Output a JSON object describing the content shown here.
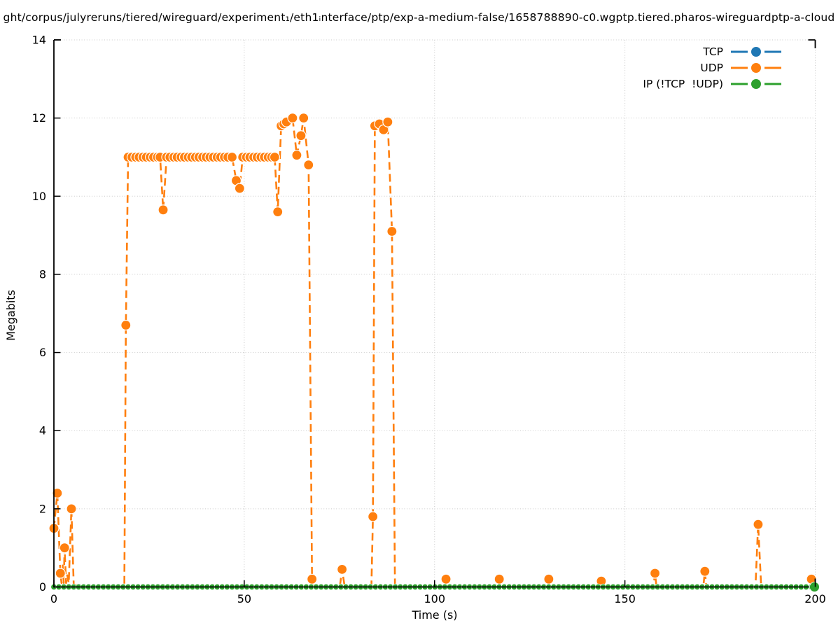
{
  "title": "ght/corpus/julyreruns/tiered/wireguard/experiment₁/eth1ᵢnterface/ptp/exp-a-medium-false/1658788890-c0.wgptp.tiered.pharos-wireguardptp-a-cloud",
  "y_axis": {
    "label": "Megabits",
    "ticks": [
      0,
      2,
      4,
      6,
      8,
      10,
      12,
      14
    ]
  },
  "x_axis": {
    "label": "Time (s)",
    "ticks": [
      0,
      50,
      100,
      150,
      200
    ]
  },
  "legend": [
    {
      "label": "TCP",
      "color": "#1f77b4"
    },
    {
      "label": "UDP",
      "color": "#ff7f0e"
    },
    {
      "label": "IP (!TCP  !UDP)",
      "color": "#2ca02c"
    }
  ],
  "colors": {
    "tcp": "#1f77b4",
    "udp": "#ff7f0e",
    "ip": "#2ca02c",
    "grid": "#c9c9c9",
    "axis": "#000000",
    "background": "#ffffff"
  },
  "chart_data": {
    "type": "line",
    "title": "ght/corpus/julyreruns/tiered/wireguard/experiment₁/eth1ᵢnterface/ptp/exp-a-medium-false/1658788890-c0.wgptp.tiered.pharos-wireguardptp-a-cloud",
    "xlabel": "Time (s)",
    "ylabel": "Megabits",
    "xlim": [
      0,
      200
    ],
    "ylim": [
      0,
      14
    ],
    "x_ticks": [
      0,
      50,
      100,
      150,
      200
    ],
    "y_ticks": [
      0,
      2,
      4,
      6,
      8,
      10,
      12,
      14
    ],
    "grid": true,
    "legend_position": "top-right-inside",
    "point_format": "[time_s, megabits, marker_visible]",
    "series": [
      {
        "name": "TCP",
        "color": "#1f77b4",
        "style": "dashed-line-with-circle-markers",
        "note": "constant 0 for whole run, hidden beneath IP markers on the x-axis",
        "points": [
          [
            0,
            0,
            0
          ],
          [
            200,
            0,
            0
          ]
        ]
      },
      {
        "name": "UDP",
        "color": "#ff7f0e",
        "style": "dashed-line-with-circle-markers",
        "points": [
          [
            0,
            1.5,
            1
          ],
          [
            0.9,
            2.4,
            1
          ],
          [
            1.7,
            0.35,
            1
          ],
          [
            2.0,
            0.1,
            0
          ],
          [
            2.3,
            0.55,
            0
          ],
          [
            2.6,
            0.1,
            0
          ],
          [
            2.8,
            1.0,
            1
          ],
          [
            3.2,
            0.1,
            0
          ],
          [
            3.5,
            0.3,
            0
          ],
          [
            3.9,
            0.1,
            0
          ],
          [
            4.6,
            2.0,
            1
          ],
          [
            5.2,
            0.05,
            0
          ],
          [
            6.3,
            0.05,
            0
          ],
          [
            6.6,
            0,
            0
          ],
          [
            18.5,
            0,
            0
          ],
          [
            18.9,
            6.7,
            1
          ],
          [
            19.5,
            11,
            1
          ],
          [
            20.5,
            11,
            1
          ],
          [
            21.5,
            11,
            1
          ],
          [
            22.4,
            11,
            1
          ],
          [
            23.4,
            11,
            1
          ],
          [
            24.3,
            11,
            1
          ],
          [
            25.3,
            11,
            1
          ],
          [
            26.2,
            11,
            1
          ],
          [
            27.2,
            11,
            1
          ],
          [
            27.9,
            11,
            1
          ],
          [
            28.7,
            9.65,
            1
          ],
          [
            29.6,
            11,
            1
          ],
          [
            30.5,
            11,
            1
          ],
          [
            31.5,
            11,
            1
          ],
          [
            32.4,
            11,
            1
          ],
          [
            33.4,
            11,
            1
          ],
          [
            34.3,
            11,
            1
          ],
          [
            35.3,
            11,
            1
          ],
          [
            36.2,
            11,
            1
          ],
          [
            37.2,
            11,
            1
          ],
          [
            38.1,
            11,
            1
          ],
          [
            39.1,
            11,
            1
          ],
          [
            40,
            11,
            1
          ],
          [
            41,
            11,
            1
          ],
          [
            41.9,
            11,
            1
          ],
          [
            42.9,
            11,
            1
          ],
          [
            43.8,
            11,
            1
          ],
          [
            44.8,
            11,
            1
          ],
          [
            45.7,
            11,
            1
          ],
          [
            46.8,
            11,
            1
          ],
          [
            47.9,
            10.4,
            1
          ],
          [
            48.8,
            10.2,
            1
          ],
          [
            49.6,
            11,
            1
          ],
          [
            50.6,
            11,
            1
          ],
          [
            51.5,
            11,
            1
          ],
          [
            52.5,
            11,
            1
          ],
          [
            53.4,
            11,
            1
          ],
          [
            54.4,
            11,
            1
          ],
          [
            55.3,
            11,
            1
          ],
          [
            56.3,
            11,
            1
          ],
          [
            57.2,
            11,
            1
          ],
          [
            58,
            11,
            1
          ],
          [
            58.8,
            9.6,
            1
          ],
          [
            59.7,
            11.8,
            1
          ],
          [
            60.4,
            11.85,
            1
          ],
          [
            61.1,
            11.9,
            1
          ],
          [
            62.7,
            12,
            1
          ],
          [
            63.8,
            11.05,
            1
          ],
          [
            64.9,
            11.55,
            1
          ],
          [
            65.6,
            12,
            1
          ],
          [
            66.9,
            10.8,
            1
          ],
          [
            67.8,
            0.2,
            1
          ],
          [
            68.3,
            0,
            0
          ],
          [
            75.1,
            0,
            0
          ],
          [
            75.7,
            0.45,
            1
          ],
          [
            76.4,
            0,
            0
          ],
          [
            83.4,
            0,
            0
          ],
          [
            83.8,
            1.8,
            1
          ],
          [
            84.3,
            11.8,
            1
          ],
          [
            85.5,
            11.85,
            1
          ],
          [
            86.6,
            11.7,
            1
          ],
          [
            87.7,
            11.9,
            1
          ],
          [
            88.8,
            9.1,
            1
          ],
          [
            89.6,
            0,
            0
          ],
          [
            102.6,
            0,
            0
          ],
          [
            103,
            0.2,
            1
          ],
          [
            103.4,
            0,
            0
          ],
          [
            116.6,
            0,
            0
          ],
          [
            117,
            0.2,
            1
          ],
          [
            117.4,
            0,
            0
          ],
          [
            129.6,
            0,
            0
          ],
          [
            130,
            0.2,
            1
          ],
          [
            130.4,
            0,
            0
          ],
          [
            143.4,
            0,
            0
          ],
          [
            143.8,
            0.15,
            1
          ],
          [
            144.2,
            0,
            0
          ],
          [
            157.5,
            0,
            0
          ],
          [
            157.9,
            0.35,
            1
          ],
          [
            158.3,
            0,
            0
          ],
          [
            170.6,
            0,
            0
          ],
          [
            171,
            0.4,
            1
          ],
          [
            171.4,
            0,
            0
          ],
          [
            184.3,
            0,
            0
          ],
          [
            185,
            1.6,
            1
          ],
          [
            185.8,
            0,
            0
          ],
          [
            198.7,
            0,
            0
          ],
          [
            199,
            0.2,
            1
          ],
          [
            199.3,
            0,
            0
          ]
        ]
      },
      {
        "name": "IP (!TCP  !UDP)",
        "color": "#2ca02c",
        "style": "dashed-line-with-circle-markers",
        "constant": 0,
        "t_range": [
          0,
          200
        ],
        "marker_interval_s": 1.3,
        "note": "flat at zero across the whole x range, circle markers along the x-axis"
      }
    ]
  }
}
